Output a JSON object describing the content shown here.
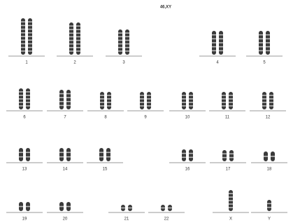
{
  "title": "46,XY",
  "rows": [
    {
      "chromosomes": [
        {
          "label": "1"
        },
        {
          "label": "2"
        },
        {
          "label": "3"
        },
        {
          "label": "4"
        },
        {
          "label": "5"
        }
      ]
    },
    {
      "chromosomes": [
        {
          "label": "6"
        },
        {
          "label": "7"
        },
        {
          "label": "8"
        },
        {
          "label": "9"
        },
        {
          "label": "10"
        },
        {
          "label": "11"
        },
        {
          "label": "12"
        }
      ]
    },
    {
      "chromosomes": [
        {
          "label": "13"
        },
        {
          "label": "14"
        },
        {
          "label": "15"
        },
        {
          "label": "16"
        },
        {
          "label": "17"
        },
        {
          "label": "18"
        }
      ]
    },
    {
      "chromosomes": [
        {
          "label": "19"
        },
        {
          "label": "20"
        },
        {
          "label": "21"
        },
        {
          "label": "22"
        },
        {
          "label": "X"
        },
        {
          "label": "Y"
        }
      ]
    }
  ]
}
